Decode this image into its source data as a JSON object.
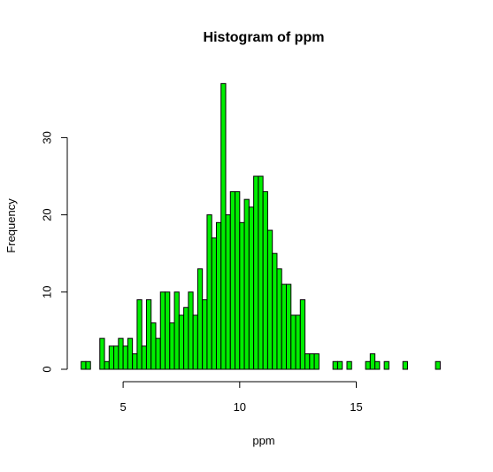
{
  "chart_data": {
    "type": "bar",
    "title": "Histogram of ppm",
    "xlabel": "ppm",
    "ylabel": "Frequency",
    "bar_color": "#00ee00",
    "edge_color": "#000000",
    "bin_start": 3.2,
    "bin_width": 0.2,
    "xlim": [
      3.2,
      18.6
    ],
    "ylim": [
      0,
      37
    ],
    "x_ticks": [
      5,
      10,
      15
    ],
    "y_ticks": [
      0,
      10,
      20,
      30
    ],
    "x_tick_labels": [
      "5",
      "10",
      "15"
    ],
    "y_tick_labels": [
      "0",
      "10",
      "20",
      "30"
    ],
    "values": [
      1,
      1,
      0,
      0,
      4,
      1,
      3,
      3,
      4,
      3,
      4,
      2,
      9,
      3,
      9,
      6,
      4,
      10,
      10,
      6,
      10,
      7,
      8,
      10,
      7,
      13,
      9,
      20,
      17,
      19,
      37,
      20,
      23,
      23,
      19,
      22,
      21,
      25,
      25,
      23,
      18,
      15,
      13,
      11,
      11,
      7,
      7,
      9,
      2,
      2,
      2,
      0,
      0,
      0,
      1,
      1,
      0,
      1,
      0,
      0,
      0,
      1,
      2,
      1,
      0,
      1,
      0,
      0,
      0,
      1,
      0,
      0,
      0,
      0,
      0,
      0,
      1
    ]
  }
}
